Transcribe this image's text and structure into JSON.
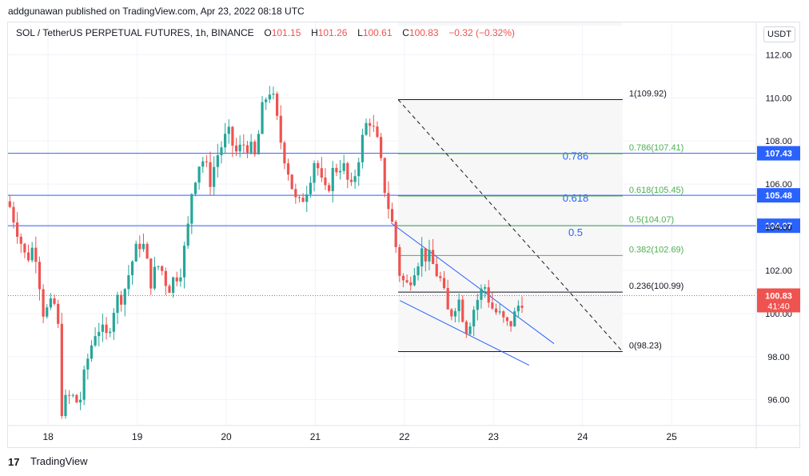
{
  "publisher_line": "addgunawan published on TradingView.com, Apr 23, 2022 08:18 UTC",
  "legend": {
    "symbol": "SOL / TetherUS PERPETUAL FUTURES, 1h, BINANCE",
    "o_label": "O",
    "o_value": "101.15",
    "h_label": "H",
    "h_value": "101.26",
    "l_label": "L",
    "l_value": "100.61",
    "c_label": "C",
    "c_value": "100.83",
    "change": "−0.32 (−0.32%)"
  },
  "currency_label": "USDT",
  "footer": {
    "brand": "TradingView",
    "logo_text": "17"
  },
  "colors": {
    "up": "#26a69a",
    "down": "#ef5350",
    "hline": "#2962ff",
    "fib_green": "#4caf50",
    "fib_black": "#131722",
    "grid": "#f0f3fa",
    "zone": "#f7f7f7"
  },
  "chart_data": {
    "type": "candlestick",
    "title": "SOL / TetherUS PERPETUAL FUTURES, 1h, BINANCE",
    "ylim": [
      94.8,
      113.5
    ],
    "xlim": [
      17.55,
      25.95
    ],
    "y_ticks": [
      "112.00",
      "110.00",
      "108.00",
      "106.00",
      "104.00",
      "102.00",
      "100.00",
      "98.00",
      "96.00"
    ],
    "x_ticks": [
      {
        "value": 18,
        "label": "18"
      },
      {
        "value": 19,
        "label": "19"
      },
      {
        "value": 20,
        "label": "20"
      },
      {
        "value": 21,
        "label": "21"
      },
      {
        "value": 22,
        "label": "22"
      },
      {
        "value": 23,
        "label": "23"
      },
      {
        "value": 24,
        "label": "24"
      },
      {
        "value": 25,
        "label": "25"
      }
    ],
    "price_path": [
      [
        17.55,
        105.2
      ],
      [
        17.65,
        104.0
      ],
      [
        17.75,
        102.5
      ],
      [
        17.85,
        103.2
      ],
      [
        17.95,
        100.0
      ],
      [
        18.1,
        100.5
      ],
      [
        18.15,
        95.6
      ],
      [
        18.25,
        96.2
      ],
      [
        18.35,
        95.8
      ],
      [
        18.45,
        98.0
      ],
      [
        18.55,
        99.5
      ],
      [
        18.65,
        98.8
      ],
      [
        18.75,
        100.5
      ],
      [
        18.85,
        101.0
      ],
      [
        18.95,
        102.5
      ],
      [
        19.05,
        103.5
      ],
      [
        19.15,
        101.5
      ],
      [
        19.25,
        102.3
      ],
      [
        19.35,
        101.2
      ],
      [
        19.5,
        102.2
      ],
      [
        19.58,
        104.2
      ],
      [
        19.62,
        106.0
      ],
      [
        19.72,
        107.3
      ],
      [
        19.82,
        106.2
      ],
      [
        19.92,
        107.6
      ],
      [
        20.02,
        108.3
      ],
      [
        20.12,
        107.4
      ],
      [
        20.22,
        108.0
      ],
      [
        20.32,
        107.2
      ],
      [
        20.42,
        109.8
      ],
      [
        20.5,
        110.5
      ],
      [
        20.6,
        108.2
      ],
      [
        20.7,
        106.6
      ],
      [
        20.8,
        104.8
      ],
      [
        20.9,
        105.8
      ],
      [
        21.0,
        107.3
      ],
      [
        21.1,
        105.4
      ],
      [
        21.2,
        106.6
      ],
      [
        21.3,
        107.0
      ],
      [
        21.4,
        105.6
      ],
      [
        21.5,
        107.6
      ],
      [
        21.6,
        109.2
      ],
      [
        21.7,
        107.8
      ],
      [
        21.78,
        105.8
      ],
      [
        21.88,
        103.8
      ],
      [
        21.95,
        101.8
      ],
      [
        22.02,
        101.2
      ],
      [
        22.12,
        102.3
      ],
      [
        22.2,
        102.9
      ],
      [
        22.3,
        102.4
      ],
      [
        22.4,
        101.6
      ],
      [
        22.5,
        99.8
      ],
      [
        22.6,
        100.8
      ],
      [
        22.7,
        99.3
      ],
      [
        22.8,
        100.5
      ],
      [
        22.9,
        101.3
      ],
      [
        22.98,
        100.3
      ],
      [
        23.08,
        99.8
      ],
      [
        23.15,
        99.4
      ],
      [
        23.22,
        99.7
      ],
      [
        23.3,
        100.6
      ],
      [
        23.35,
        100.83
      ]
    ],
    "horizontal_lines": [
      {
        "price": 107.43,
        "label": "107.43"
      },
      {
        "price": 105.48,
        "label": "105.48"
      },
      {
        "price": 104.07,
        "label": "104.07"
      }
    ],
    "horizontal_line_texts": [
      "0.786",
      "0.618",
      "0.5"
    ],
    "fibonacci": {
      "x_start": 21.93,
      "x_end": 24.45,
      "levels": [
        {
          "ratio": 1,
          "price": 109.92,
          "label": "1(109.92)"
        },
        {
          "ratio": 0.786,
          "price": 107.41,
          "label": "0.786(107.41)"
        },
        {
          "ratio": 0.618,
          "price": 105.45,
          "label": "0.618(105.45)"
        },
        {
          "ratio": 0.5,
          "price": 104.07,
          "label": "0.5(104.07)"
        },
        {
          "ratio": 0.382,
          "price": 102.69,
          "label": "0.382(102.69)"
        },
        {
          "ratio": 0.236,
          "price": 100.99,
          "label": "0.236(100.99)"
        },
        {
          "ratio": 0,
          "price": 98.23,
          "label": "0(98.23)"
        }
      ]
    },
    "channel": {
      "upper": [
        [
          21.85,
          104.2
        ],
        [
          23.68,
          98.6
        ]
      ],
      "lower": [
        [
          21.95,
          100.6
        ],
        [
          23.4,
          97.6
        ]
      ]
    },
    "diagonal": [
      [
        21.93,
        109.92
      ],
      [
        24.45,
        98.23
      ]
    ],
    "last_price": {
      "price": 100.83,
      "label": "100.83",
      "countdown": "41:40"
    }
  }
}
